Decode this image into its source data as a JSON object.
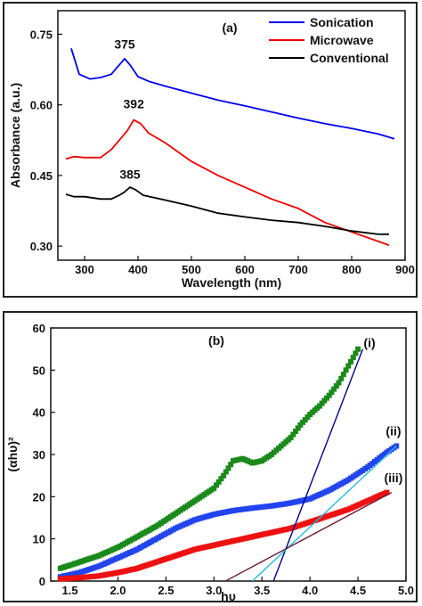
{
  "chart_data": [
    {
      "type": "line",
      "panel_label": "(a)",
      "xlabel": "Wavelength (nm)",
      "ylabel": "Absorbance (a.u.)",
      "xlim": [
        250,
        900
      ],
      "ylim": [
        0.27,
        0.8
      ],
      "xticks": [
        300,
        400,
        500,
        600,
        700,
        800,
        900
      ],
      "yticks": [
        0.3,
        0.45,
        0.6,
        0.75
      ],
      "ytick_labels": [
        "0.30",
        "0.45",
        "0.60",
        "0.75"
      ],
      "legend_position": "top-right",
      "series": [
        {
          "name": "Sonication",
          "color": "#0000ee",
          "x": [
            275,
            290,
            310,
            330,
            350,
            365,
            375,
            385,
            400,
            420,
            450,
            500,
            550,
            600,
            650,
            700,
            750,
            800,
            850,
            880
          ],
          "y": [
            0.72,
            0.665,
            0.655,
            0.658,
            0.665,
            0.685,
            0.698,
            0.685,
            0.66,
            0.65,
            0.64,
            0.625,
            0.61,
            0.598,
            0.585,
            0.572,
            0.56,
            0.55,
            0.538,
            0.528
          ]
        },
        {
          "name": "Microwave",
          "color": "#ee0000",
          "x": [
            265,
            280,
            300,
            330,
            350,
            365,
            380,
            392,
            405,
            420,
            450,
            500,
            550,
            600,
            650,
            700,
            750,
            800,
            850,
            870
          ],
          "y": [
            0.485,
            0.49,
            0.488,
            0.488,
            0.505,
            0.525,
            0.545,
            0.568,
            0.56,
            0.54,
            0.52,
            0.48,
            0.45,
            0.425,
            0.4,
            0.38,
            0.35,
            0.33,
            0.31,
            0.302
          ]
        },
        {
          "name": "Conventional",
          "color": "#000000",
          "x": [
            265,
            280,
            300,
            330,
            350,
            365,
            375,
            385,
            395,
            410,
            450,
            500,
            550,
            600,
            650,
            700,
            750,
            800,
            850,
            870
          ],
          "y": [
            0.41,
            0.405,
            0.405,
            0.4,
            0.4,
            0.408,
            0.415,
            0.425,
            0.42,
            0.408,
            0.398,
            0.385,
            0.37,
            0.362,
            0.355,
            0.35,
            0.342,
            0.332,
            0.325,
            0.325
          ]
        }
      ],
      "annotations": [
        {
          "text": "375",
          "x": 375,
          "y": 0.72
        },
        {
          "text": "392",
          "x": 392,
          "y": 0.593
        },
        {
          "text": "385",
          "x": 385,
          "y": 0.443
        }
      ]
    },
    {
      "type": "scatter",
      "panel_label": "(b)",
      "xlabel": "hυ",
      "ylabel": "(αhυ)²",
      "xlim": [
        1.3,
        5.0
      ],
      "ylim": [
        0,
        60
      ],
      "xticks": [
        1.5,
        2.0,
        2.5,
        3.0,
        3.5,
        4.0,
        4.5,
        5.0
      ],
      "xtick_labels": [
        "1.5",
        "2.0",
        "2.5",
        "3.0",
        "3.5",
        "4.0",
        "4.5",
        "5.0"
      ],
      "yticks": [
        0,
        10,
        20,
        30,
        40,
        50,
        60
      ],
      "series": [
        {
          "name": "(i)",
          "color": "#1a8a1a",
          "x": [
            1.4,
            1.6,
            1.8,
            2.0,
            2.2,
            2.4,
            2.6,
            2.8,
            3.0,
            3.1,
            3.2,
            3.3,
            3.4,
            3.5,
            3.6,
            3.7,
            3.8,
            3.9,
            4.0,
            4.1,
            4.2,
            4.3,
            4.4,
            4.5
          ],
          "y": [
            3,
            4.5,
            6,
            8,
            10.5,
            13,
            16,
            19,
            22,
            25,
            28.5,
            29,
            28,
            28.5,
            30,
            32,
            34,
            37,
            39.5,
            41.5,
            44,
            47,
            51,
            55
          ]
        },
        {
          "name": "(ii)",
          "color": "#2244ee",
          "x": [
            1.4,
            1.6,
            1.8,
            2.0,
            2.2,
            2.4,
            2.6,
            2.8,
            3.0,
            3.2,
            3.4,
            3.6,
            3.8,
            4.0,
            4.2,
            4.4,
            4.6,
            4.8,
            4.9
          ],
          "y": [
            1,
            2,
            3.5,
            5.5,
            7.5,
            10,
            12.5,
            14.5,
            15.8,
            16.7,
            17.3,
            17.8,
            18.5,
            19.5,
            21.5,
            24,
            27,
            30.5,
            32
          ]
        },
        {
          "name": "(iii)",
          "color": "#ee1111",
          "x": [
            1.4,
            1.6,
            1.8,
            2.0,
            2.2,
            2.4,
            2.6,
            2.8,
            3.0,
            3.2,
            3.4,
            3.6,
            3.8,
            4.0,
            4.2,
            4.4,
            4.6,
            4.8
          ],
          "y": [
            0.5,
            0.8,
            1.2,
            2,
            3,
            4.5,
            6,
            7.5,
            8.5,
            9.5,
            10.5,
            11.5,
            12.5,
            14,
            15.5,
            17,
            19,
            21
          ]
        }
      ],
      "fit_lines": [
        {
          "color": "#00008b",
          "x": [
            3.62,
            4.55
          ],
          "y": [
            0,
            55
          ]
        },
        {
          "color": "#22bbdd",
          "x": [
            3.4,
            4.9
          ],
          "y": [
            0,
            32
          ]
        },
        {
          "color": "#6b1a3a",
          "x": [
            3.12,
            4.85
          ],
          "y": [
            0,
            21
          ]
        }
      ],
      "annotations": [
        {
          "text": "(i)",
          "x": 4.62,
          "y": 55.5
        },
        {
          "text": "(ii)",
          "x": 4.87,
          "y": 34.5
        },
        {
          "text": "(iii)",
          "x": 4.87,
          "y": 23.5
        }
      ]
    }
  ]
}
